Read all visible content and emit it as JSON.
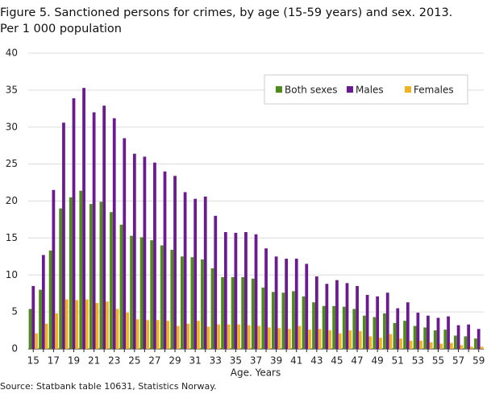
{
  "chart_data": {
    "type": "bar",
    "title": "Figure 5. Sanctioned persons for crimes, by age (15-59 years) and sex. 2013.",
    "subtitle": "Per 1 000 population",
    "x_label": "Age. Years",
    "source": "Source: Statbank table 10631, Statistics Norway.",
    "categories": [
      "15",
      null,
      "17",
      null,
      "19",
      null,
      "21",
      null,
      "23",
      null,
      "25",
      null,
      "27",
      null,
      "29",
      null,
      "31",
      null,
      "33",
      null,
      "35",
      null,
      "37",
      null,
      "39",
      null,
      "41",
      null,
      "43",
      null,
      "45",
      null,
      "47",
      null,
      "49",
      null,
      "51",
      null,
      "53",
      null,
      "55",
      null,
      "57",
      null,
      "59"
    ],
    "series": [
      {
        "name": "Both sexes",
        "color": "#4e8a1c",
        "values": [
          5.4,
          8.0,
          13.3,
          19.0,
          20.5,
          21.4,
          19.6,
          19.9,
          18.5,
          16.8,
          15.3,
          15.1,
          14.7,
          14.0,
          13.4,
          12.5,
          12.4,
          12.1,
          10.9,
          9.7,
          9.7,
          9.7,
          9.5,
          8.3,
          7.7,
          7.6,
          7.8,
          7.1,
          6.3,
          5.8,
          5.8,
          5.7,
          5.4,
          4.5,
          4.3,
          4.8,
          3.5,
          3.8,
          3.1,
          2.9,
          2.5,
          2.6,
          1.8,
          1.7,
          1.4
        ]
      },
      {
        "name": "Males",
        "color": "#6a1b8f",
        "values": [
          8.5,
          12.7,
          21.5,
          30.6,
          33.9,
          35.3,
          32.0,
          32.9,
          31.2,
          28.5,
          26.4,
          26.0,
          25.2,
          24.0,
          23.4,
          21.2,
          20.3,
          20.6,
          18.0,
          15.8,
          15.7,
          15.8,
          15.5,
          13.6,
          12.5,
          12.2,
          12.2,
          11.5,
          9.8,
          8.8,
          9.3,
          8.9,
          8.5,
          7.3,
          7.1,
          7.6,
          5.5,
          6.3,
          4.9,
          4.5,
          4.2,
          4.4,
          3.2,
          3.3,
          2.7
        ]
      },
      {
        "name": "Females",
        "color": "#eeb224",
        "values": [
          2.1,
          3.4,
          4.8,
          6.7,
          6.6,
          6.7,
          6.2,
          6.4,
          5.4,
          4.9,
          4.0,
          3.9,
          3.9,
          3.8,
          3.1,
          3.4,
          3.8,
          3.0,
          3.3,
          3.3,
          3.3,
          3.2,
          3.1,
          2.9,
          2.8,
          2.7,
          3.1,
          2.6,
          2.7,
          2.5,
          2.1,
          2.5,
          2.4,
          1.7,
          1.5,
          2.0,
          1.4,
          1.1,
          1.1,
          0.9,
          0.7,
          0.8,
          0.5,
          0.3,
          0.3
        ]
      }
    ],
    "ylim": [
      0,
      40
    ],
    "yticks": [
      0,
      5,
      10,
      15,
      20,
      25,
      30,
      35,
      40
    ],
    "grid": true,
    "legend": "upper right"
  }
}
